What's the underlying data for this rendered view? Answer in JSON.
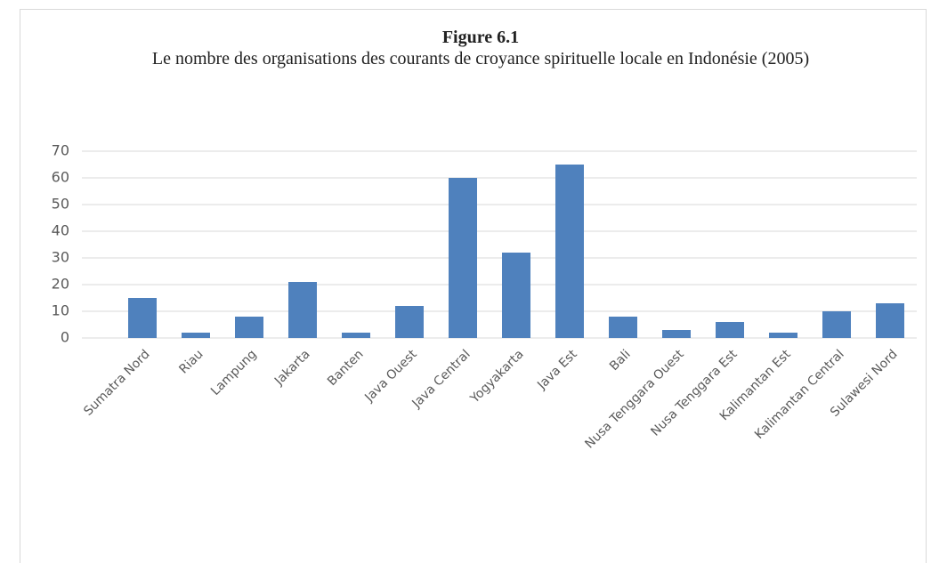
{
  "chart_data": {
    "type": "bar",
    "title": "Figure 6.1",
    "subtitle": "Le nombre des organisations des courants de croyance spirituelle locale en Indonésie (2005)",
    "categories": [
      "Sumatra Nord",
      "Riau",
      "Lampung",
      "Jakarta",
      "Banten",
      "Java Ouest",
      "Java Central",
      "Yogyakarta",
      "Java Est",
      "Bali",
      "Nusa Tenggara Ouest",
      "Nusa Tenggara Est",
      "Kalimantan Est",
      "Kalimantan Central",
      "Sulawesi Nord"
    ],
    "values": [
      15,
      2,
      8,
      21,
      2,
      12,
      60,
      32,
      65,
      8,
      3,
      6,
      2,
      10,
      13
    ],
    "color": "#4f81bd",
    "ylim": [
      0,
      70
    ],
    "yticks": [
      0,
      10,
      20,
      30,
      40,
      50,
      60,
      70
    ],
    "grid": true
  }
}
